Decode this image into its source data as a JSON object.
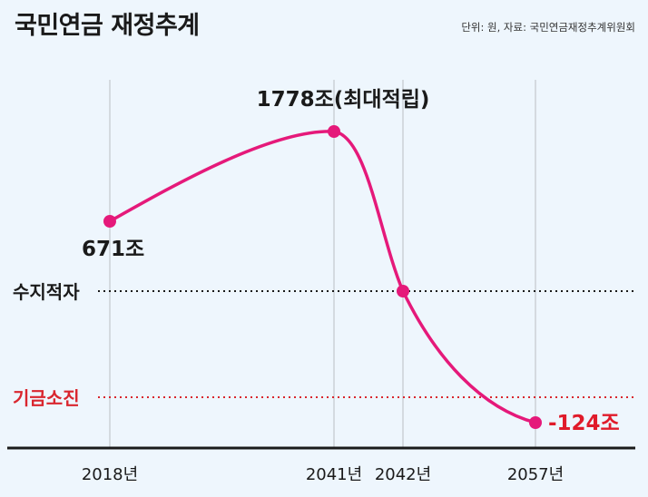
{
  "title": "국민연금 재정추계",
  "source": "단위: 원, 자료: 국민연금재정추계위원회",
  "colors": {
    "background": "#eef6fd",
    "line": "#e5197a",
    "gridline": "#c4c8cc",
    "balance_line": "#1a1a1a",
    "depletion_line": "#d9262e",
    "negative_label": "#e01b2a",
    "text": "#1a1a1a"
  },
  "chart_data": {
    "type": "line",
    "title": "국민연금 재정추계",
    "unit": "조",
    "x": [
      2018,
      2041,
      2042,
      2057
    ],
    "tick_labels": [
      "2018년",
      "2041년",
      "2042년",
      "2057년"
    ],
    "series": [
      {
        "values": [
          671,
          1778,
          0,
          -124
        ]
      }
    ],
    "point_labels": [
      "671조",
      "1778조(최대적립)",
      "",
      "-124조"
    ],
    "reference_lines": [
      {
        "label": "수지적자",
        "style": "dotted",
        "color": "#1a1a1a"
      },
      {
        "label": "기금소진",
        "style": "dotted",
        "color": "#d9262e"
      }
    ],
    "grid": "vertical lines at data points",
    "legend": "none"
  }
}
